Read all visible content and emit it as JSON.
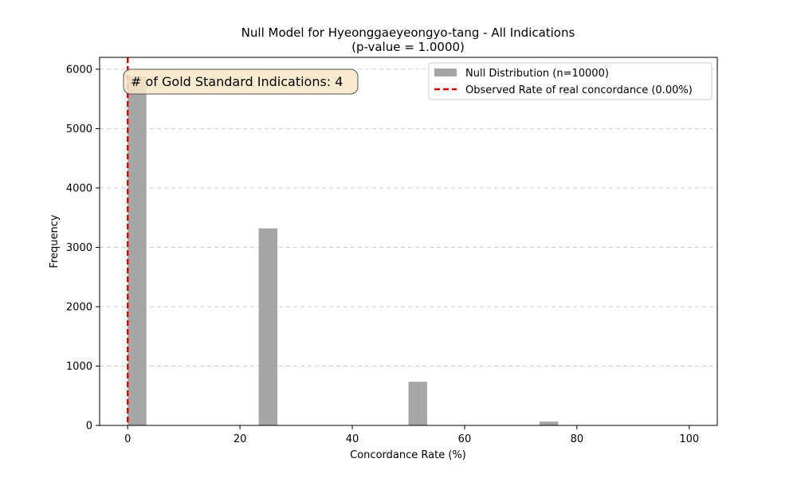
{
  "chart_data": {
    "type": "bar",
    "title": "Null Model for Hyeonggaeyeongyo-tang - All Indications",
    "subtitle": "(p-value = 1.0000)",
    "xlabel": "Concordance Rate (%)",
    "ylabel": "Frequency",
    "xlim": [
      -5,
      105
    ],
    "ylim": [
      0,
      6200
    ],
    "xticks": [
      0,
      20,
      40,
      60,
      80,
      100
    ],
    "yticks": [
      0,
      1000,
      2000,
      3000,
      4000,
      5000,
      6000
    ],
    "grid": "y-dashed",
    "bars": [
      {
        "x_start": 0,
        "x_end": 3.33,
        "value": 5880
      },
      {
        "x_start": 23.33,
        "x_end": 26.67,
        "value": 3320
      },
      {
        "x_start": 50,
        "x_end": 53.33,
        "value": 735
      },
      {
        "x_start": 73.33,
        "x_end": 76.67,
        "value": 65
      }
    ],
    "bar_color": "#a6a6a6",
    "observed_line": {
      "x": 0,
      "color": "#e00000",
      "style": "dashed"
    },
    "legend": {
      "placement": "top-right",
      "entries": [
        {
          "label": "Null Distribution (n=10000)",
          "kind": "patch",
          "color": "#a6a6a6"
        },
        {
          "label": "Observed Rate of real concordance (0.00%)",
          "kind": "dashed-line",
          "color": "#e00000"
        }
      ]
    },
    "annotation": {
      "text": "# of Gold Standard Indications: 4",
      "placement": "top-left",
      "background": "#f8e6c8"
    }
  }
}
